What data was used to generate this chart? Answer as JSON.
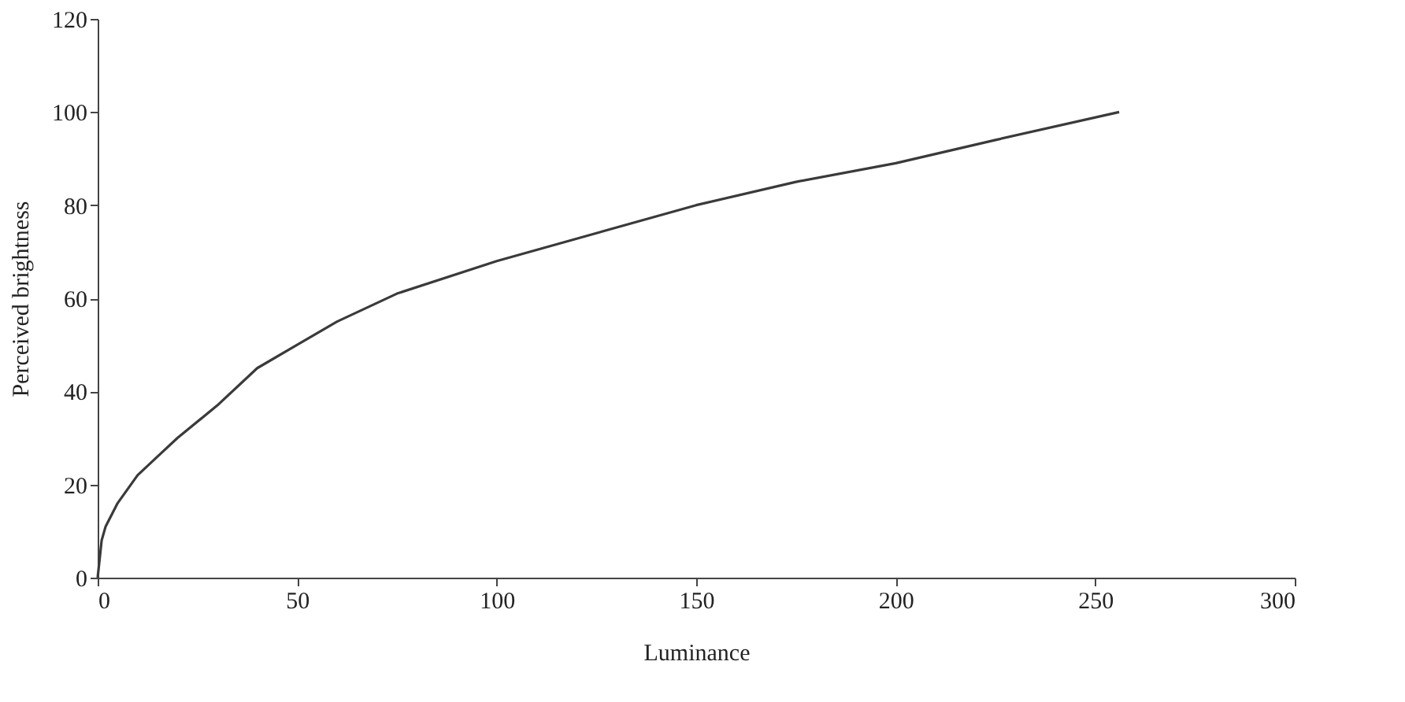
{
  "chart_data": {
    "type": "line",
    "xlabel": "Luminance",
    "ylabel": "Perceived brightness",
    "x": [
      0,
      1,
      2,
      5,
      10,
      15,
      20,
      30,
      40,
      50,
      60,
      75,
      100,
      125,
      150,
      175,
      200,
      225,
      256
    ],
    "series": [
      {
        "color": "#3a3a3a",
        "values": [
          0,
          8,
          11,
          16,
          22,
          26,
          30,
          37,
          45,
          50,
          55,
          61,
          68,
          74,
          80,
          85,
          89,
          94,
          100
        ]
      }
    ],
    "xlim": [
      0,
      300
    ],
    "xticks": [
      0,
      50,
      100,
      150,
      200,
      250,
      300
    ],
    "ylim": [
      0,
      120
    ],
    "yticks": [
      0,
      20,
      40,
      60,
      80,
      100,
      120
    ],
    "grid": false,
    "marker": "none",
    "line_style": "solid"
  }
}
